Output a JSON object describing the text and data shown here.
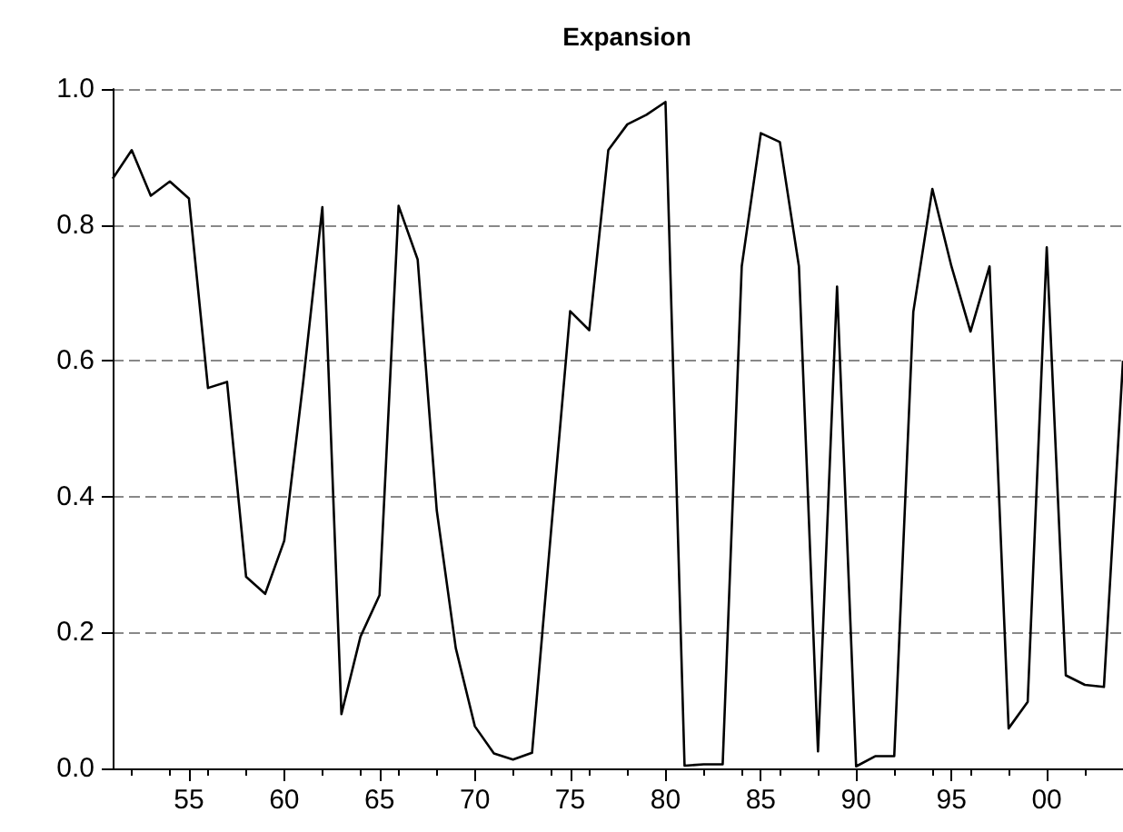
{
  "chart_data": {
    "type": "line",
    "title": "Expansion",
    "x": [
      1951,
      1952,
      1953,
      1954,
      1955,
      1956,
      1957,
      1958,
      1959,
      1960,
      1961,
      1962,
      1963,
      1964,
      1965,
      1966,
      1967,
      1968,
      1969,
      1970,
      1971,
      1972,
      1973,
      1974,
      1975,
      1976,
      1977,
      1978,
      1979,
      1980,
      1981,
      1982,
      1983,
      1984,
      1985,
      1986,
      1987,
      1988,
      1989,
      1990,
      1991,
      1992,
      1993,
      1994,
      1995,
      1996,
      1997,
      1998,
      1999,
      2000,
      2001,
      2002,
      2003,
      2004
    ],
    "values": [
      0.868,
      0.91,
      0.843,
      0.864,
      0.839,
      0.56,
      0.569,
      0.282,
      0.257,
      0.335,
      0.57,
      0.826,
      0.08,
      0.194,
      0.255,
      0.828,
      0.749,
      0.38,
      0.177,
      0.062,
      0.022,
      0.013,
      0.023,
      0.35,
      0.673,
      0.645,
      0.91,
      0.948,
      0.962,
      0.981,
      0.004,
      0.006,
      0.006,
      0.739,
      0.935,
      0.922,
      0.739,
      0.025,
      0.709,
      0.003,
      0.018,
      0.018,
      0.672,
      0.853,
      0.739,
      0.643,
      0.739,
      0.059,
      0.098,
      0.767,
      0.137,
      0.123,
      0.12,
      0.6
    ],
    "color": "#000000",
    "xlim": [
      1951,
      2004
    ],
    "xticks": [
      {
        "value": 1955,
        "label": "55"
      },
      {
        "value": 1960,
        "label": "60"
      },
      {
        "value": 1965,
        "label": "65"
      },
      {
        "value": 1970,
        "label": "70"
      },
      {
        "value": 1975,
        "label": "75"
      },
      {
        "value": 1980,
        "label": "80"
      },
      {
        "value": 1985,
        "label": "85"
      },
      {
        "value": 1990,
        "label": "90"
      },
      {
        "value": 1995,
        "label": "95"
      },
      {
        "value": 2000,
        "label": "00"
      }
    ],
    "ylim": [
      0,
      1
    ],
    "yticks": [
      {
        "value": 0,
        "label": "0.0"
      },
      {
        "value": 0.2,
        "label": "0.2"
      },
      {
        "value": 0.4,
        "label": "0.4"
      },
      {
        "value": 0.6,
        "label": "0.6"
      },
      {
        "value": 0.8,
        "label": "0.8"
      },
      {
        "value": 1,
        "label": "1.0"
      }
    ],
    "grid": "y",
    "marker": "none",
    "line_style": "solid"
  }
}
